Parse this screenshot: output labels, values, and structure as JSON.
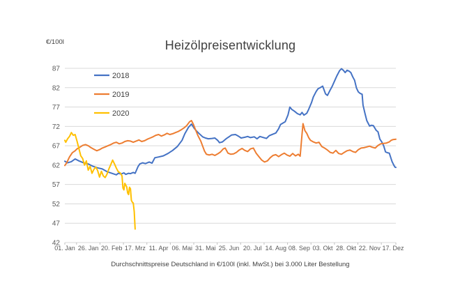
{
  "page": {
    "background": "#ffffff"
  },
  "chart_data": {
    "type": "line",
    "title": "Heizölpreisentwicklung",
    "y_axis_unit": "€/100l",
    "footnote": "Durchschnittspreise Deutschland in €/100l (inkl. MwSt.) bei 3.000 Liter Bestellung",
    "ylim": [
      42,
      87
    ],
    "y_ticks": [
      87,
      82,
      77,
      72,
      67,
      62,
      57,
      52,
      47,
      42
    ],
    "x_tick_labels": [
      "01. Jan",
      "26. Jan",
      "20. Feb",
      "17. Mrz",
      "11. Apr",
      "06. Mai",
      "31. Mai",
      "25. Jun",
      "20. Jul",
      "14. Aug",
      "08. Sep",
      "03. Okt",
      "28. Okt",
      "22. Nov",
      "17. Dez"
    ],
    "x_tick_days": [
      1,
      26,
      51,
      76,
      101,
      126,
      151,
      176,
      201,
      226,
      251,
      276,
      301,
      326,
      351
    ],
    "x_range_days": [
      1,
      354
    ],
    "grid": "horizontal-only",
    "legend": {
      "position": "top-left-inside"
    },
    "colors": {
      "grid": "#D9D9D9",
      "axis_line": "#D9D9D9",
      "tick_mark": "#BFBFBF",
      "axis_text": "#595959",
      "legend_text": "#404040"
    },
    "series": [
      {
        "name": "2018",
        "color": "#4472C4",
        "days": [
          1,
          4,
          8,
          12,
          16,
          21,
          26,
          31,
          36,
          41,
          46,
          51,
          56,
          58,
          61,
          64,
          66,
          69,
          71,
          74,
          76,
          79,
          81,
          84,
          87,
          91,
          94,
          97,
          101,
          106,
          111,
          116,
          121,
          126,
          129,
          133,
          136,
          139,
          141,
          144,
          148,
          151,
          154,
          158,
          161,
          164,
          166,
          169,
          173,
          176,
          179,
          183,
          186,
          189,
          193,
          196,
          199,
          203,
          206,
          209,
          213,
          216,
          219,
          223,
          226,
          229,
          231,
          234,
          236,
          239,
          241,
          243,
          246,
          249,
          252,
          254,
          256,
          259,
          261,
          264,
          266,
          269,
          271,
          274,
          276,
          279,
          281,
          284,
          286,
          289,
          291,
          294,
          296,
          298,
          300,
          302,
          304,
          306,
          308,
          310,
          312,
          314,
          316,
          318,
          319,
          321,
          323,
          326,
          328,
          330,
          333,
          335,
          337,
          339,
          341,
          343,
          345,
          347,
          349,
          350,
          351,
          352,
          353,
          354
        ],
        "values": [
          63.0,
          62.6,
          62.9,
          63.6,
          63.1,
          62.6,
          62.3,
          61.7,
          61.3,
          61.0,
          60.3,
          59.9,
          59.5,
          59.9,
          59.7,
          60.0,
          59.6,
          59.9,
          59.8,
          60.1,
          59.9,
          61.6,
          62.3,
          62.6,
          62.4,
          62.8,
          62.5,
          63.9,
          64.1,
          64.4,
          65.0,
          65.8,
          66.8,
          68.4,
          70.1,
          71.8,
          72.6,
          71.5,
          70.9,
          70.2,
          69.3,
          69.0,
          68.8,
          68.9,
          69.0,
          68.4,
          67.8,
          68.0,
          68.8,
          69.3,
          69.8,
          69.9,
          69.5,
          69.0,
          69.2,
          69.4,
          69.1,
          69.3,
          68.8,
          69.4,
          69.1,
          68.9,
          69.6,
          70.0,
          70.3,
          71.4,
          72.5,
          72.9,
          73.2,
          75.0,
          77.0,
          76.4,
          75.9,
          75.3,
          75.0,
          75.6,
          74.9,
          75.4,
          76.4,
          78.1,
          79.6,
          81.0,
          81.7,
          82.1,
          82.4,
          80.4,
          80.0,
          81.4,
          82.3,
          83.9,
          85.0,
          86.4,
          86.9,
          86.5,
          85.9,
          86.5,
          86.3,
          85.9,
          84.8,
          83.9,
          81.9,
          80.9,
          80.5,
          80.3,
          77.5,
          75.4,
          73.5,
          72.1,
          72.3,
          72.2,
          71.0,
          70.6,
          68.7,
          68.0,
          67.0,
          65.4,
          65.2,
          65.1,
          63.6,
          62.9,
          62.4,
          61.9,
          61.5,
          61.4
        ]
      },
      {
        "name": "2019",
        "color": "#ED7D31",
        "days": [
          1,
          3,
          6,
          9,
          12,
          14,
          17,
          20,
          23,
          26,
          29,
          32,
          35,
          38,
          41,
          44,
          47,
          50,
          53,
          56,
          59,
          62,
          65,
          68,
          71,
          74,
          77,
          80,
          83,
          86,
          89,
          92,
          95,
          98,
          101,
          104,
          107,
          110,
          113,
          116,
          119,
          122,
          125,
          128,
          131,
          134,
          136,
          138,
          140,
          143,
          146,
          148,
          150,
          152,
          155,
          158,
          161,
          164,
          167,
          170,
          172,
          175,
          178,
          181,
          184,
          187,
          190,
          193,
          196,
          199,
          202,
          205,
          208,
          211,
          214,
          217,
          220,
          223,
          226,
          229,
          232,
          235,
          238,
          241,
          244,
          247,
          250,
          252,
          254,
          255,
          257,
          259,
          261,
          263,
          266,
          269,
          272,
          275,
          278,
          281,
          284,
          287,
          290,
          293,
          296,
          299,
          302,
          305,
          308,
          311,
          314,
          317,
          320,
          323,
          326,
          329,
          332,
          335,
          338,
          341,
          344,
          347,
          349,
          351,
          354
        ],
        "values": [
          61.9,
          62.6,
          64.1,
          65.2,
          65.7,
          66.2,
          66.6,
          67.1,
          67.3,
          67.0,
          66.5,
          66.1,
          65.7,
          66.0,
          66.4,
          66.7,
          67.0,
          67.3,
          67.7,
          67.9,
          67.5,
          67.7,
          68.1,
          68.3,
          68.2,
          67.9,
          68.2,
          68.5,
          68.1,
          68.3,
          68.7,
          69.0,
          69.3,
          69.7,
          69.9,
          69.5,
          69.8,
          70.2,
          69.9,
          70.1,
          70.4,
          70.7,
          71.1,
          71.6,
          72.2,
          73.2,
          73.5,
          72.6,
          71.4,
          69.6,
          68.2,
          66.9,
          65.6,
          64.8,
          64.6,
          64.8,
          64.5,
          64.9,
          65.4,
          66.2,
          66.4,
          65.1,
          64.8,
          64.9,
          65.3,
          65.9,
          66.3,
          65.8,
          65.5,
          66.2,
          66.4,
          65.1,
          64.2,
          63.3,
          62.8,
          63.1,
          63.9,
          64.5,
          64.7,
          64.2,
          64.7,
          65.1,
          64.6,
          64.3,
          65.0,
          64.4,
          64.8,
          64.3,
          70.0,
          72.7,
          70.9,
          70.2,
          69.1,
          68.4,
          68.0,
          67.7,
          67.9,
          66.8,
          66.4,
          65.9,
          65.3,
          65.1,
          65.8,
          65.0,
          64.8,
          65.3,
          65.7,
          65.9,
          65.5,
          65.3,
          66.0,
          66.4,
          66.5,
          66.7,
          66.9,
          66.6,
          66.4,
          67.1,
          67.5,
          67.6,
          67.7,
          68.0,
          68.4,
          68.6,
          68.7
        ]
      },
      {
        "name": "2020",
        "color": "#FFC000",
        "days": [
          1,
          2,
          4,
          6,
          8,
          10,
          12,
          14,
          16,
          18,
          20,
          22,
          24,
          26,
          28,
          30,
          32,
          34,
          36,
          38,
          40,
          42,
          44,
          46,
          48,
          50,
          52,
          54,
          56,
          58,
          60,
          62,
          63,
          64,
          65,
          66,
          67,
          68,
          69,
          70,
          71,
          72,
          73,
          74,
          75,
          76
        ],
        "values": [
          68.4,
          67.9,
          68.8,
          69.4,
          70.4,
          69.7,
          69.9,
          68.2,
          66.3,
          64.4,
          63.7,
          62.0,
          63.1,
          60.7,
          61.7,
          59.9,
          60.9,
          61.5,
          60.6,
          58.9,
          60.4,
          59.2,
          58.8,
          59.7,
          61.0,
          62.1,
          63.3,
          62.3,
          61.2,
          60.3,
          60.0,
          59.2,
          56.1,
          55.6,
          57.3,
          56.8,
          56.4,
          54.8,
          54.4,
          56.3,
          55.9,
          52.9,
          52.4,
          52.2,
          50.0,
          45.5
        ]
      }
    ]
  }
}
